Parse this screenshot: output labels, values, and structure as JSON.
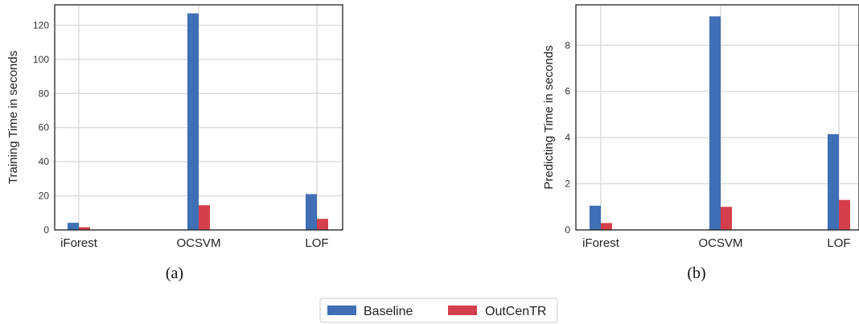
{
  "chart_data": [
    {
      "type": "bar",
      "caption": "(a)",
      "ylabel": "Training Time in seconds",
      "categories": [
        "iForest",
        "OCSVM",
        "LOF"
      ],
      "yticks": [
        0,
        20,
        40,
        60,
        80,
        100,
        120
      ],
      "ylim": [
        0,
        132
      ],
      "grid": true,
      "series": [
        {
          "name": "Baseline",
          "color": "#3f6fb5",
          "values": [
            4.2,
            127,
            21
          ]
        },
        {
          "name": "OutCenTR",
          "color": "#d43f4b",
          "values": [
            1.6,
            14.5,
            6.5
          ]
        }
      ]
    },
    {
      "type": "bar",
      "caption": "(b)",
      "ylabel": "Predicting Time in seconds",
      "categories": [
        "iForest",
        "OCSVM",
        "LOF"
      ],
      "yticks": [
        0,
        2,
        4,
        6,
        8
      ],
      "ylim": [
        0,
        9.75
      ],
      "grid": true,
      "series": [
        {
          "name": "Baseline",
          "color": "#3f6fb5",
          "values": [
            1.05,
            9.25,
            4.15
          ]
        },
        {
          "name": "OutCenTR",
          "color": "#d43f4b",
          "values": [
            0.3,
            1.0,
            1.3
          ]
        }
      ]
    }
  ],
  "legend": {
    "placement": "bottom-center",
    "items": [
      {
        "label": "Baseline",
        "color": "#3f6fb5"
      },
      {
        "label": "OutCenTR",
        "color": "#d43f4b"
      }
    ]
  }
}
